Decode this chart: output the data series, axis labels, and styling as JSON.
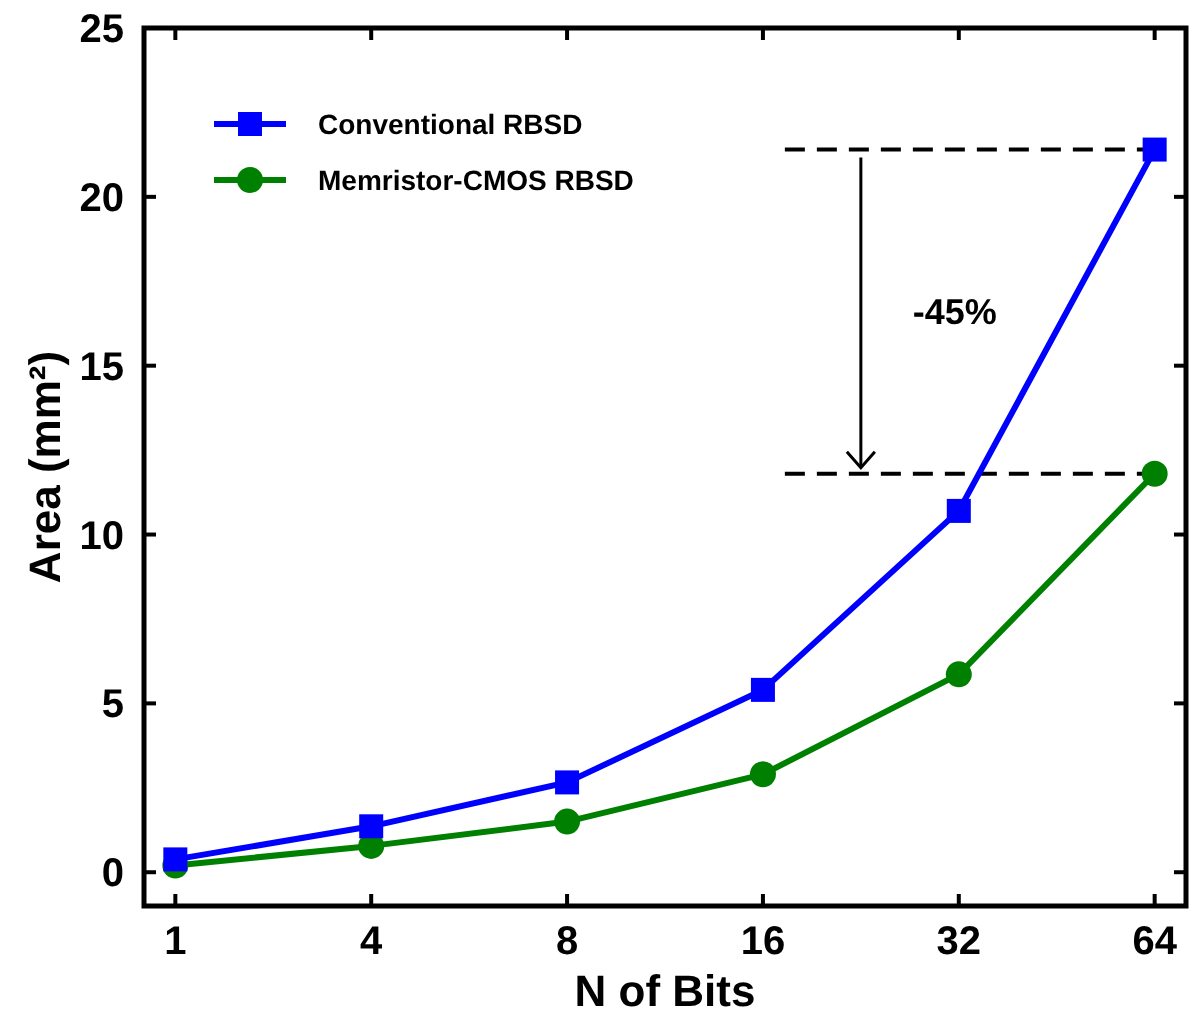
{
  "chart_data": {
    "type": "line",
    "xlabel": "N of Bits",
    "ylabel": "Area (mm²)",
    "categories": [
      "1",
      "4",
      "8",
      "16",
      "32",
      "64"
    ],
    "series": [
      {
        "name": "Conventional RBSD",
        "color": "#0000ff",
        "marker": "square",
        "values": [
          0.38,
          1.36,
          2.66,
          5.4,
          10.7,
          21.4
        ]
      },
      {
        "name": "Memristor-CMOS RBSD",
        "color": "#008000",
        "marker": "circle",
        "values": [
          0.2,
          0.78,
          1.5,
          2.9,
          5.86,
          11.8
        ]
      }
    ],
    "ylim": [
      -1,
      25
    ],
    "yticks": [
      0,
      5,
      10,
      15,
      20,
      25
    ],
    "ref_lines": [
      {
        "axis": "y",
        "value": 21.4,
        "line_style": "dashed",
        "color": "#000000"
      },
      {
        "axis": "y",
        "value": 11.8,
        "line_style": "dashed",
        "color": "#000000"
      }
    ],
    "annotations": [
      "-45%"
    ],
    "legend": "top left",
    "grid": false,
    "line_style": "solid"
  }
}
